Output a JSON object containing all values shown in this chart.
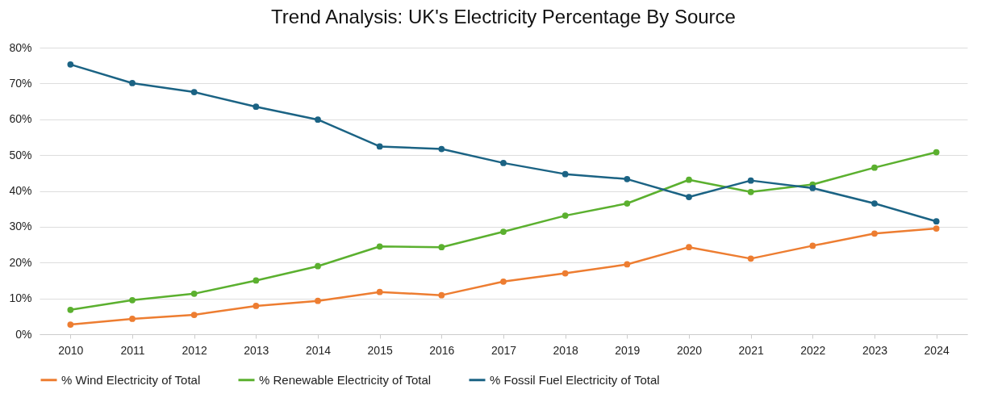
{
  "chart_data": {
    "type": "line",
    "title": "Trend Analysis: UK's Electricity Percentage By Source",
    "categories": [
      "2010",
      "2011",
      "2012",
      "2013",
      "2014",
      "2015",
      "2016",
      "2017",
      "2018",
      "2019",
      "2020",
      "2021",
      "2022",
      "2023",
      "2024"
    ],
    "series": [
      {
        "name": "% Wind Electricity of Total",
        "color": "#ed7d31",
        "values": [
          2.7,
          4.3,
          5.4,
          7.9,
          9.3,
          11.8,
          10.9,
          14.7,
          17.0,
          19.5,
          24.3,
          21.1,
          24.7,
          28.1,
          29.5
        ]
      },
      {
        "name": "% Renewable Electricity of Total",
        "color": "#5bb02f",
        "values": [
          6.8,
          9.5,
          11.3,
          15.0,
          19.0,
          24.5,
          24.3,
          28.6,
          33.1,
          36.5,
          43.1,
          39.7,
          41.8,
          46.5,
          50.8
        ]
      },
      {
        "name": "% Fossil Fuel Electricity of Total",
        "color": "#1b6384",
        "values": [
          75.3,
          70.1,
          67.6,
          63.5,
          59.9,
          52.4,
          51.7,
          47.8,
          44.7,
          43.3,
          38.3,
          42.9,
          40.8,
          36.5,
          31.5
        ]
      }
    ],
    "ylim": [
      0,
      80
    ],
    "yticks": [
      {
        "value": 0,
        "label": "0%"
      },
      {
        "value": 10,
        "label": "10%"
      },
      {
        "value": 20,
        "label": "20%"
      },
      {
        "value": 30,
        "label": "30%"
      },
      {
        "value": 40,
        "label": "40%"
      },
      {
        "value": 50,
        "label": "50%"
      },
      {
        "value": 60,
        "label": "60%"
      },
      {
        "value": 70,
        "label": "70%"
      },
      {
        "value": 80,
        "label": "80%"
      }
    ],
    "grid": "y",
    "legend": "bottom",
    "marker": "circle",
    "line_style": "solid"
  }
}
